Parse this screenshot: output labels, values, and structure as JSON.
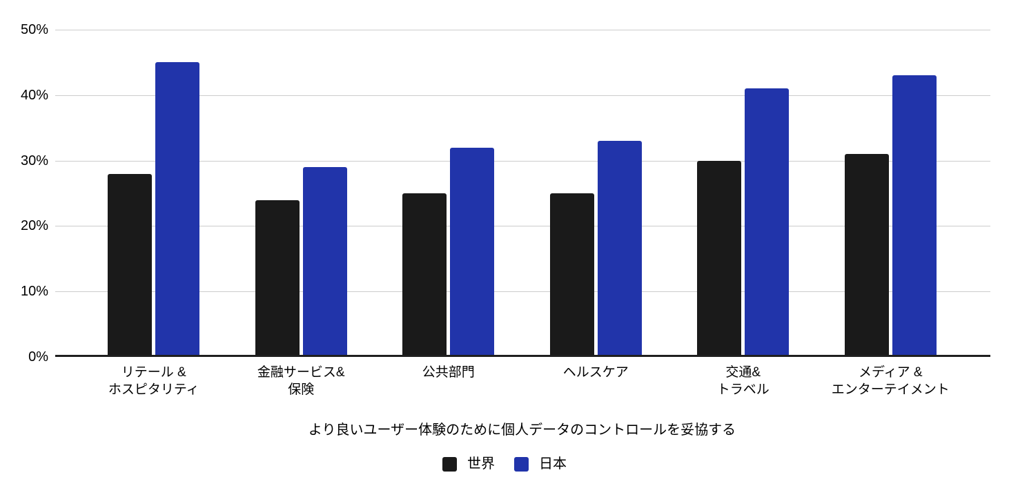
{
  "chart_data": {
    "type": "bar",
    "title": "",
    "xlabel": "より良いユーザー体験のために個人データのコントロールを妥協する",
    "ylabel": "",
    "categories": [
      "リテール &\nホスピタリティ",
      "金融サービス&\n保険",
      "公共部門",
      "ヘルスケア",
      "交通&\nトラベル",
      "メディア &\nエンターテイメント"
    ],
    "series": [
      {
        "key": "world",
        "name": "世界",
        "color": "#1a1a1a",
        "values": [
          28,
          24,
          25,
          25,
          30,
          31
        ]
      },
      {
        "key": "japan",
        "name": "日本",
        "color": "#2134aa",
        "values": [
          45,
          29,
          32,
          33,
          41,
          43
        ]
      }
    ],
    "ylim": [
      0,
      50
    ],
    "y_ticks": [
      {
        "label": "0%",
        "value": 0
      },
      {
        "label": "10%",
        "value": 10
      },
      {
        "label": "20%",
        "value": 20
      },
      {
        "label": "30%",
        "value": 30
      },
      {
        "label": "40%",
        "value": 40
      },
      {
        "label": "50%",
        "value": 50
      }
    ],
    "grid": true,
    "legend_position": "bottom",
    "colors": {
      "gridline": "#cccccc",
      "axis_line": "#1f1f1f",
      "text": "#000000",
      "background": "#ffffff"
    }
  }
}
